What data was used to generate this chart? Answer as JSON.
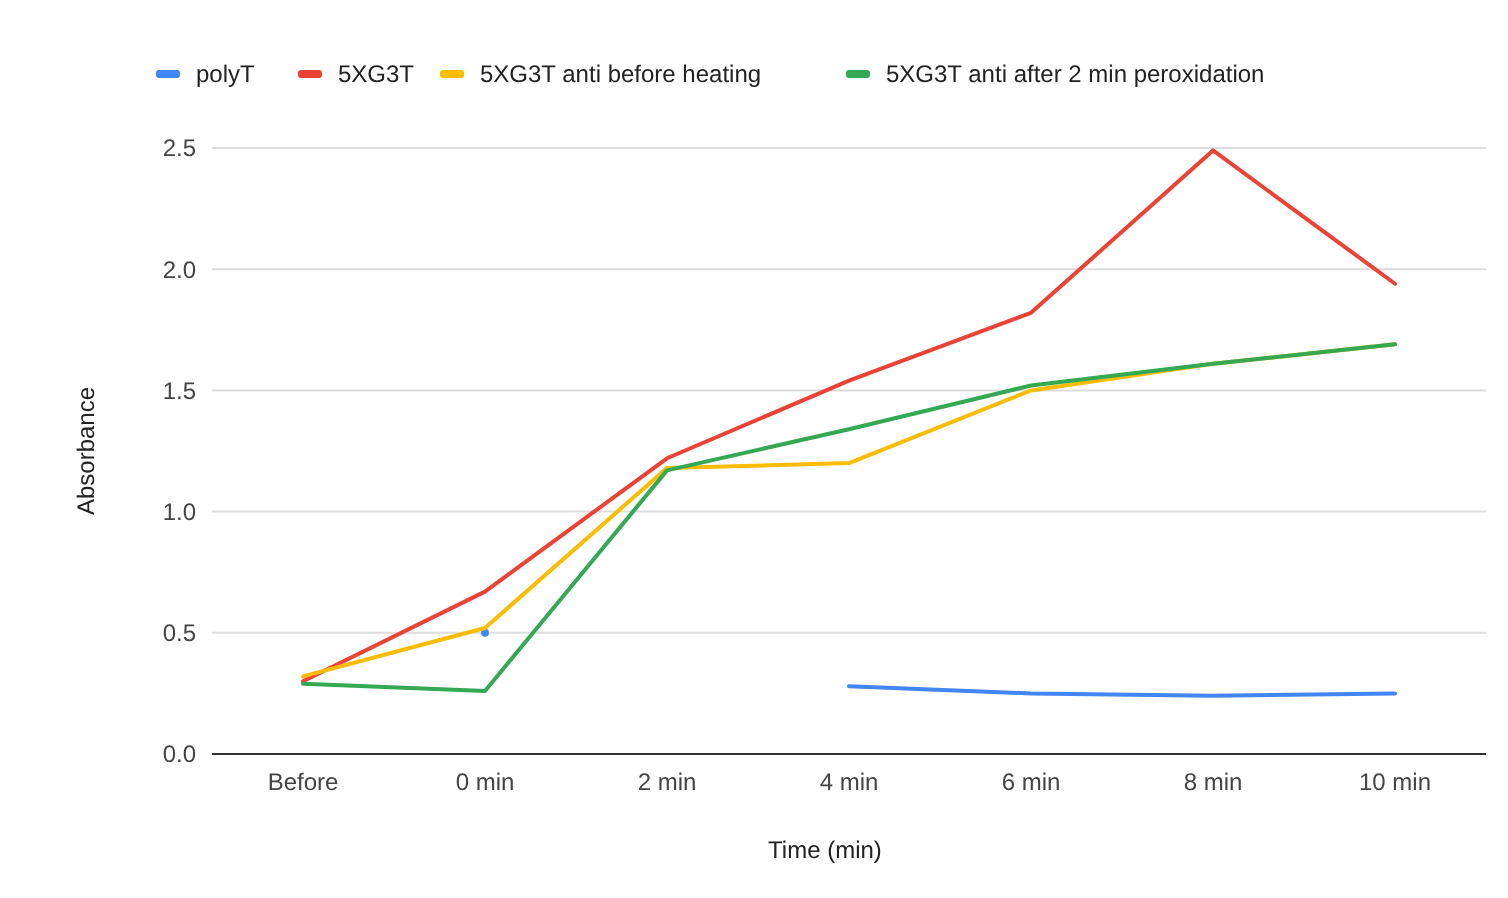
{
  "chart_data": {
    "type": "line",
    "xlabel": "Time (min)",
    "ylabel": "Absorbance",
    "categories": [
      "Before",
      "0 min",
      "2 min",
      "4 min",
      "6 min",
      "8 min",
      "10 min"
    ],
    "series": [
      {
        "name": "polyT",
        "color": "#4285f4",
        "values": [
          null,
          0.5,
          null,
          0.28,
          0.25,
          0.24,
          0.25
        ]
      },
      {
        "name": "5XG3T",
        "color": "#ea4335",
        "values": [
          0.3,
          0.67,
          1.22,
          1.54,
          1.82,
          2.49,
          1.94
        ]
      },
      {
        "name": "5XG3T anti before heating",
        "color": "#fbbc04",
        "values": [
          0.32,
          0.52,
          1.18,
          1.2,
          1.5,
          1.61,
          1.69
        ]
      },
      {
        "name": "5XG3T anti after 2 min peroxidation",
        "color": "#34a853",
        "values": [
          0.29,
          0.26,
          1.17,
          1.34,
          1.52,
          1.61,
          1.69
        ]
      }
    ],
    "ylim": [
      0,
      2.5
    ],
    "yticks": [
      {
        "value": 0,
        "label": "0.0"
      },
      0.5,
      {
        "value": 1,
        "label": "1.0"
      },
      1.5,
      {
        "value": 2,
        "label": "2.0"
      },
      2.5
    ],
    "grid": "y",
    "legend": "top"
  }
}
